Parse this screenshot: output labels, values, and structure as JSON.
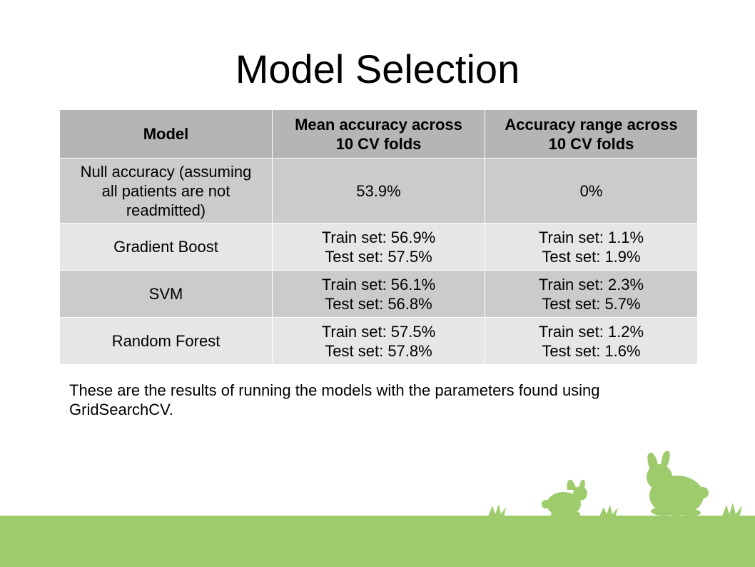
{
  "title": "Model Selection",
  "table": {
    "headers": [
      "Model",
      [
        "Mean accuracy across",
        "10 CV folds"
      ],
      [
        "Accuracy range across",
        "10 CV folds"
      ]
    ],
    "rows": [
      {
        "model": [
          "Null accuracy (assuming",
          "all patients are not",
          "readmitted)"
        ],
        "mean": [
          "53.9%"
        ],
        "range": [
          "0%"
        ]
      },
      {
        "model": [
          "Gradient Boost"
        ],
        "mean": [
          "Train set: 56.9%",
          "Test set: 57.5%"
        ],
        "range": [
          "Train set: 1.1%",
          "Test set: 1.9%"
        ]
      },
      {
        "model": [
          "SVM"
        ],
        "mean": [
          "Train set: 56.1%",
          "Test set: 56.8%"
        ],
        "range": [
          "Train set: 2.3%",
          "Test set: 5.7%"
        ]
      },
      {
        "model": [
          "Random Forest"
        ],
        "mean": [
          "Train set: 57.5%",
          "Test set: 57.8%"
        ],
        "range": [
          "Train set: 1.2%",
          "Test set: 1.6%"
        ]
      }
    ]
  },
  "caption": "These are the results of running the models with the parameters found using GridSearchCV.",
  "colors": {
    "header_bg": "#b5b5b5",
    "row_dark": "#cbcbcb",
    "row_light": "#e6e6e6",
    "ground": "#9ecc6d"
  },
  "decoration": {
    "icons": [
      "grass-tuft-icon",
      "rabbit-small-icon",
      "rabbit-large-icon"
    ]
  }
}
